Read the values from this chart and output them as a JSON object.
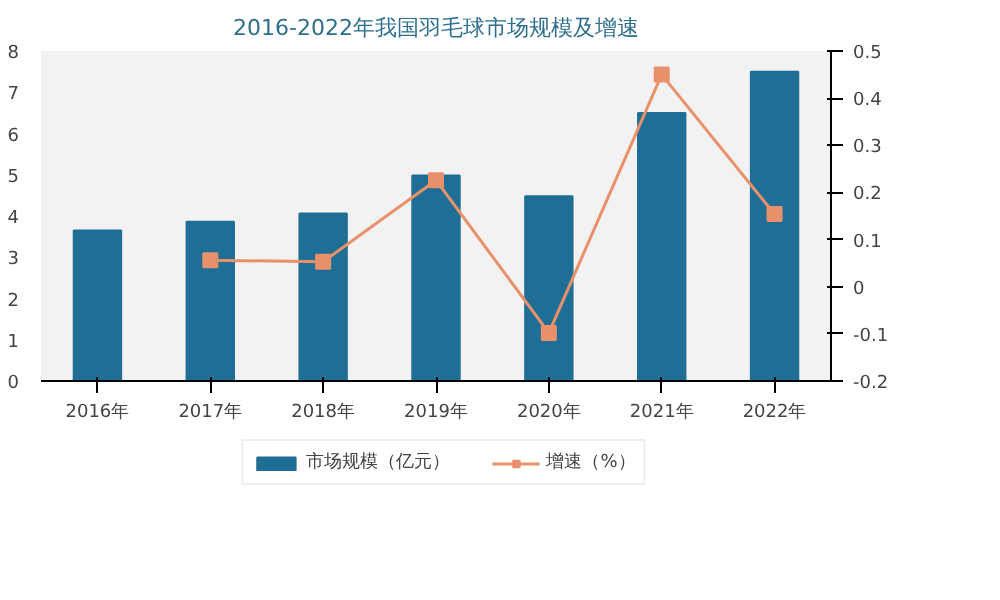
{
  "chart_data": {
    "type": "bar",
    "title": "2016-2022年我国羽毛球市场规模及增速",
    "categories": [
      "2016年",
      "2017年",
      "2018年",
      "2019年",
      "2020年",
      "2021年",
      "2022年"
    ],
    "series": [
      {
        "name": "市场规模（亿元）",
        "color": "#1f6e96",
        "values": [
          3.65,
          3.86,
          4.06,
          4.98,
          4.48,
          6.5,
          7.5
        ]
      },
      {
        "name": "增速（%）",
        "color": "#e8916a",
        "type": "line",
        "axis": "y2",
        "marker": "square",
        "values": [
          null,
          0.056,
          0.053,
          0.226,
          -0.098,
          0.45,
          0.154
        ]
      }
    ],
    "ylim": [
      0,
      8
    ],
    "yticks": [
      0,
      1,
      2,
      3,
      4,
      5,
      6,
      7,
      8
    ],
    "y2lim": [
      -0.2,
      0.5
    ],
    "y2ticks": [
      -0.2,
      -0.1,
      0,
      0.1,
      0.2,
      0.3,
      0.4,
      0.5
    ],
    "grid": false,
    "legend": "bottom"
  }
}
